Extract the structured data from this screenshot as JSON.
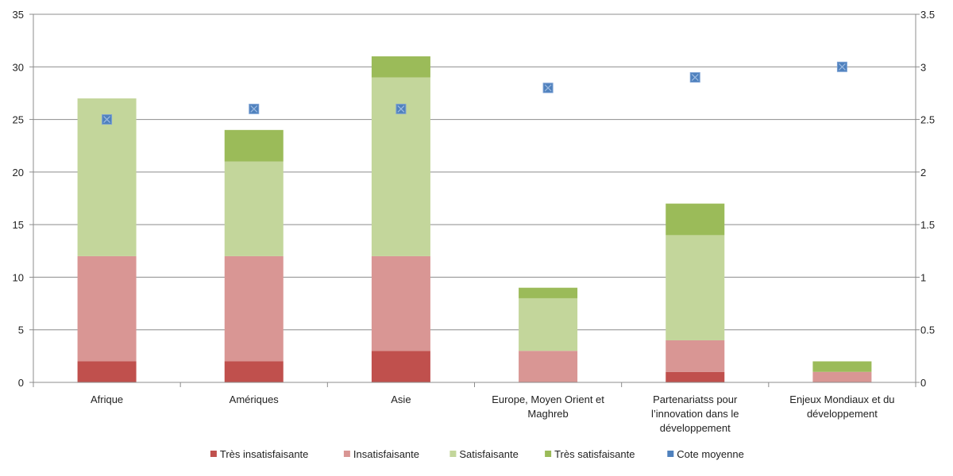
{
  "chart_data": {
    "type": "bar",
    "stacked": true,
    "categories": [
      "Afrique",
      "Amériques",
      "Asie",
      "Europe, Moyen Orient et Maghreb",
      "Partenariatss pour l’innovation dans le développement",
      "Enjeux Mondiaux et du développement"
    ],
    "category_lines": [
      [
        "Afrique"
      ],
      [
        "Amériques"
      ],
      [
        "Asie"
      ],
      [
        "Europe, Moyen Orient et",
        "Maghreb"
      ],
      [
        "Partenariatss pour",
        "l’innovation dans le",
        "développement"
      ],
      [
        "Enjeux Mondiaux et du",
        "développement"
      ]
    ],
    "series": [
      {
        "name": "Très insatisfaisante",
        "color": "#c0504d",
        "values": [
          2,
          2,
          3,
          0,
          1,
          0
        ]
      },
      {
        "name": "Insatisfaisante",
        "color": "#d99694",
        "values": [
          10,
          10,
          9,
          3,
          3,
          1
        ]
      },
      {
        "name": "Satisfaisante",
        "color": "#c3d69b",
        "values": [
          15,
          9,
          17,
          5,
          10,
          0
        ]
      },
      {
        "name": "Très satisfaisante",
        "color": "#9bbb59",
        "values": [
          0,
          3,
          2,
          1,
          3,
          1
        ]
      }
    ],
    "marker_series": {
      "name": "Cote moyenne",
      "color": "#4f81bd",
      "axis": "right",
      "values": [
        2.5,
        2.6,
        2.6,
        2.8,
        2.9,
        3.0
      ]
    },
    "ylim": [
      0,
      35
    ],
    "yticks": [
      "0",
      "5",
      "10",
      "15",
      "20",
      "25",
      "30",
      "35"
    ],
    "y2lim": [
      0,
      3.5
    ],
    "y2ticks": [
      "0",
      "0.5",
      "1",
      "1.5",
      "2",
      "2.5",
      "3",
      "3.5"
    ],
    "grid": true,
    "legend_position": "bottom"
  }
}
